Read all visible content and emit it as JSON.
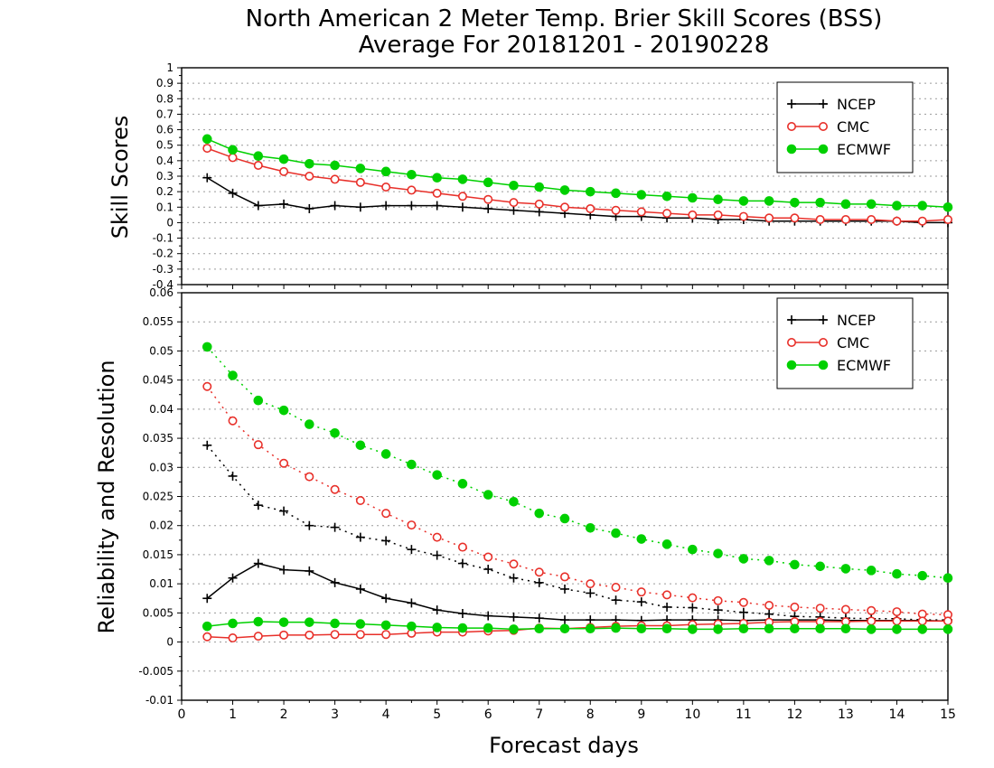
{
  "title": {
    "line1": "North American 2 Meter Temp. Brier Skill Scores (BSS)",
    "line2": "Average For 20181201 - 20190228"
  },
  "x_axis_label": "Forecast days",
  "colors": {
    "NCEP": "#000000",
    "CMC": "#e8302a",
    "ECMWF": "#00d000",
    "grid": "#9a9a9a"
  },
  "chart_data": [
    {
      "type": "line",
      "panel": "top",
      "ylabel": "Skill Scores",
      "xlim": [
        0,
        15
      ],
      "ylim": [
        -0.4,
        1
      ],
      "x_ticks": [
        "0",
        "1",
        "2",
        "3",
        "4",
        "5",
        "6",
        "7",
        "8",
        "9",
        "10",
        "11",
        "12",
        "13",
        "14",
        "15"
      ],
      "y_ticks": [
        "-0.4",
        "-0.3",
        "-0.2",
        "-0.1",
        "0",
        "0.1",
        "0.2",
        "0.3",
        "0.4",
        "0.5",
        "0.6",
        "0.7",
        "0.8",
        "0.9",
        "1"
      ],
      "grid": true,
      "legend": {
        "position": "top-right",
        "entries": [
          "NCEP",
          "CMC",
          "ECMWF"
        ]
      },
      "x": [
        0.5,
        1,
        1.5,
        2,
        2.5,
        3,
        3.5,
        4,
        4.5,
        5,
        5.5,
        6,
        6.5,
        7,
        7.5,
        8,
        8.5,
        9,
        9.5,
        10,
        10.5,
        11,
        11.5,
        12,
        12.5,
        13,
        13.5,
        14,
        14.5,
        15
      ],
      "series": [
        {
          "name": "NCEP",
          "marker": "plus",
          "style": "solid",
          "values": [
            0.29,
            0.19,
            0.11,
            0.12,
            0.09,
            0.11,
            0.1,
            0.11,
            0.11,
            0.11,
            0.1,
            0.09,
            0.08,
            0.07,
            0.06,
            0.05,
            0.04,
            0.04,
            0.03,
            0.03,
            0.02,
            0.02,
            0.01,
            0.01,
            0.01,
            0.01,
            0.01,
            0.01,
            0.0,
            0.0
          ]
        },
        {
          "name": "CMC",
          "marker": "open-circle",
          "style": "solid",
          "values": [
            0.48,
            0.42,
            0.37,
            0.33,
            0.3,
            0.28,
            0.26,
            0.23,
            0.21,
            0.19,
            0.17,
            0.15,
            0.13,
            0.12,
            0.1,
            0.09,
            0.08,
            0.07,
            0.06,
            0.05,
            0.05,
            0.04,
            0.03,
            0.03,
            0.02,
            0.02,
            0.02,
            0.01,
            0.01,
            0.02
          ]
        },
        {
          "name": "ECMWF",
          "marker": "filled-circle",
          "style": "solid",
          "values": [
            0.54,
            0.47,
            0.43,
            0.41,
            0.38,
            0.37,
            0.35,
            0.33,
            0.31,
            0.29,
            0.28,
            0.26,
            0.24,
            0.23,
            0.21,
            0.2,
            0.19,
            0.18,
            0.17,
            0.16,
            0.15,
            0.14,
            0.14,
            0.13,
            0.13,
            0.12,
            0.12,
            0.11,
            0.11,
            0.1
          ]
        }
      ]
    },
    {
      "type": "line",
      "panel": "bottom",
      "ylabel": "Reliability and Resolution",
      "xlim": [
        0,
        15
      ],
      "ylim": [
        -0.01,
        0.06
      ],
      "x_ticks": [
        "0",
        "1",
        "2",
        "3",
        "4",
        "5",
        "6",
        "7",
        "8",
        "9",
        "10",
        "11",
        "12",
        "13",
        "14",
        "15"
      ],
      "y_ticks": [
        "-0.01",
        "-0.005",
        "0",
        "0.005",
        "0.01",
        "0.015",
        "0.02",
        "0.025",
        "0.03",
        "0.035",
        "0.04",
        "0.045",
        "0.05",
        "0.055",
        "0.06"
      ],
      "grid": true,
      "legend": {
        "position": "top-right",
        "entries": [
          "NCEP",
          "CMC",
          "ECMWF"
        ]
      },
      "x": [
        0.5,
        1,
        1.5,
        2,
        2.5,
        3,
        3.5,
        4,
        4.5,
        5,
        5.5,
        6,
        6.5,
        7,
        7.5,
        8,
        8.5,
        9,
        9.5,
        10,
        10.5,
        11,
        11.5,
        12,
        12.5,
        13,
        13.5,
        14,
        14.5,
        15
      ],
      "series": [
        {
          "name": "NCEP",
          "marker": "plus",
          "style": "dotted",
          "values": [
            0.0338,
            0.0285,
            0.0235,
            0.0225,
            0.02,
            0.0197,
            0.018,
            0.0174,
            0.0159,
            0.0149,
            0.0135,
            0.0125,
            0.011,
            0.0102,
            0.0091,
            0.0084,
            0.0072,
            0.0069,
            0.006,
            0.0059,
            0.0055,
            0.0051,
            0.0048,
            0.0044,
            0.0043,
            0.0041,
            0.004,
            0.004,
            0.0038,
            0.0038
          ]
        },
        {
          "name": "NCEP",
          "marker": "plus",
          "style": "solid",
          "values": [
            0.0075,
            0.011,
            0.0135,
            0.0124,
            0.0122,
            0.0102,
            0.0091,
            0.0075,
            0.0067,
            0.0055,
            0.0049,
            0.0045,
            0.0043,
            0.0041,
            0.0038,
            0.0038,
            0.0038,
            0.0037,
            0.0038,
            0.0038,
            0.0038,
            0.0037,
            0.0038,
            0.0038,
            0.0038,
            0.0037,
            0.0037,
            0.0037,
            0.0037,
            0.0036
          ]
        },
        {
          "name": "CMC",
          "marker": "open-circle",
          "style": "dotted",
          "values": [
            0.0439,
            0.038,
            0.0339,
            0.0307,
            0.0284,
            0.0262,
            0.0243,
            0.0221,
            0.0201,
            0.018,
            0.0163,
            0.0146,
            0.0134,
            0.012,
            0.0112,
            0.01,
            0.0094,
            0.0086,
            0.0081,
            0.0076,
            0.0071,
            0.0068,
            0.0063,
            0.006,
            0.0058,
            0.0056,
            0.0054,
            0.0052,
            0.0048,
            0.0047
          ]
        },
        {
          "name": "CMC",
          "marker": "open-circle",
          "style": "solid",
          "values": [
            0.0009,
            0.0007,
            0.001,
            0.0012,
            0.0012,
            0.0013,
            0.0013,
            0.0013,
            0.0015,
            0.0017,
            0.0017,
            0.0019,
            0.002,
            0.0024,
            0.0023,
            0.0025,
            0.0027,
            0.0028,
            0.0028,
            0.003,
            0.0031,
            0.0032,
            0.0034,
            0.0035,
            0.0035,
            0.0035,
            0.0036,
            0.0036,
            0.0036,
            0.0036
          ]
        },
        {
          "name": "ECMWF",
          "marker": "filled-circle",
          "style": "dotted",
          "values": [
            0.0507,
            0.0458,
            0.0415,
            0.0398,
            0.0374,
            0.0359,
            0.0338,
            0.0323,
            0.0305,
            0.0287,
            0.0272,
            0.0253,
            0.0241,
            0.0221,
            0.0212,
            0.0196,
            0.0187,
            0.0177,
            0.0168,
            0.0159,
            0.0152,
            0.0143,
            0.014,
            0.0133,
            0.013,
            0.0126,
            0.0123,
            0.0117,
            0.0114,
            0.011
          ]
        },
        {
          "name": "ECMWF",
          "marker": "filled-circle",
          "style": "solid",
          "values": [
            0.0027,
            0.0032,
            0.0035,
            0.0034,
            0.0034,
            0.0032,
            0.0031,
            0.0029,
            0.0027,
            0.0025,
            0.0024,
            0.0024,
            0.0022,
            0.0023,
            0.0023,
            0.0023,
            0.0024,
            0.0023,
            0.0023,
            0.0022,
            0.0022,
            0.0023,
            0.0023,
            0.0023,
            0.0023,
            0.0023,
            0.0022,
            0.0022,
            0.0022,
            0.0022
          ]
        }
      ]
    }
  ]
}
